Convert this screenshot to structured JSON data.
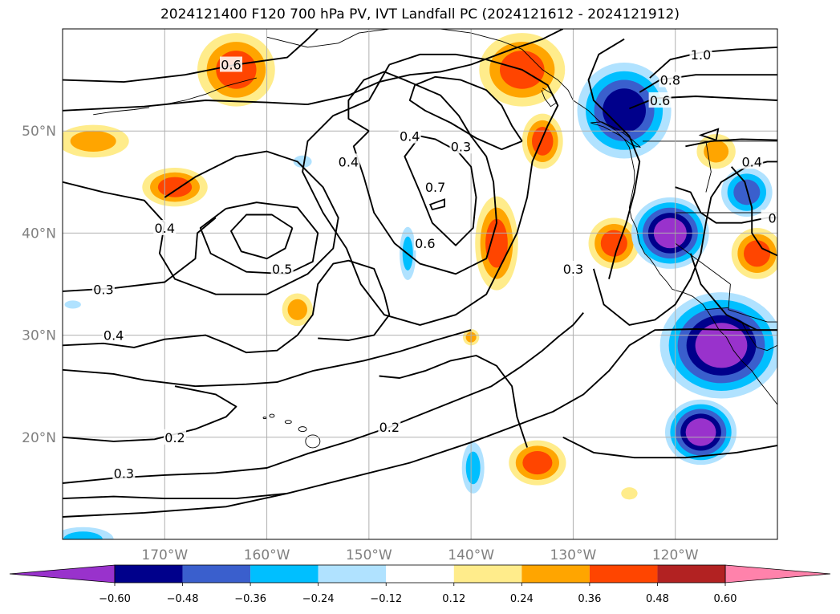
{
  "chart_data": {
    "type": "heatmap",
    "title": "2024121400 F120 700 hPa PV, IVT Landfall PC (2024121612 - 2024121912)",
    "x_ticks": [
      "170°W",
      "160°W",
      "150°W",
      "140°W",
      "130°W",
      "120°W"
    ],
    "x_tick_values": [
      -170,
      -160,
      -150,
      -140,
      -130,
      -120
    ],
    "y_ticks": [
      "20°N",
      "30°N",
      "40°N",
      "50°N"
    ],
    "y_tick_values": [
      20,
      30,
      40,
      50
    ],
    "xlim": [
      -180,
      -110
    ],
    "ylim": [
      10,
      60
    ],
    "grid": true,
    "colorbar": {
      "orientation": "horizontal",
      "extend": "both",
      "levels": [
        -0.72,
        -0.6,
        -0.48,
        -0.36,
        -0.24,
        -0.12,
        0.12,
        0.24,
        0.36,
        0.48,
        0.6,
        0.72
      ],
      "tick_labels": [
        "−0.60",
        "−0.48",
        "−0.36",
        "−0.24",
        "−0.12",
        "0.12",
        "0.24",
        "0.36",
        "0.48",
        "0.60"
      ],
      "tick_values": [
        -0.6,
        -0.48,
        -0.36,
        -0.24,
        -0.12,
        0.12,
        0.24,
        0.36,
        0.48,
        0.6
      ],
      "colors": [
        "#9932cc",
        "#00008b",
        "#3a5fcd",
        "#00bfff",
        "#b0e2ff",
        "#ffffff",
        "#ffec8b",
        "#ffa500",
        "#ff4500",
        "#b22222",
        "#ff82ab"
      ]
    },
    "shaded_regions": [
      {
        "sign": "positive",
        "lon": -163,
        "lat": 56,
        "peak": 0.42
      },
      {
        "sign": "positive",
        "lon": -177,
        "lat": 49,
        "peak": 0.3
      },
      {
        "sign": "positive",
        "lon": -169,
        "lat": 44.5,
        "peak": 0.38
      },
      {
        "sign": "positive",
        "lon": -135,
        "lat": 56,
        "peak": 0.42
      },
      {
        "sign": "positive",
        "lon": -133,
        "lat": 49,
        "peak": 0.38
      },
      {
        "sign": "positive",
        "lon": -137.5,
        "lat": 39,
        "peak": 0.4
      },
      {
        "sign": "positive",
        "lon": -126,
        "lat": 39,
        "peak": 0.38
      },
      {
        "sign": "positive",
        "lon": -116,
        "lat": 48,
        "peak": 0.3
      },
      {
        "sign": "positive",
        "lon": -112,
        "lat": 38,
        "peak": 0.38
      },
      {
        "sign": "positive",
        "lon": -157,
        "lat": 32.5,
        "peak": 0.3
      },
      {
        "sign": "positive",
        "lon": -140,
        "lat": 29.8,
        "peak": 0.25
      },
      {
        "sign": "positive",
        "lon": -133.5,
        "lat": 17.5,
        "peak": 0.38
      },
      {
        "sign": "positive",
        "lon": -124.5,
        "lat": 14.5,
        "peak": 0.2
      },
      {
        "sign": "negative",
        "lon": -125,
        "lat": 52,
        "peak": -0.55
      },
      {
        "sign": "negative",
        "lon": -120.5,
        "lat": 40,
        "peak": -0.65
      },
      {
        "sign": "negative",
        "lon": -115.5,
        "lat": 29,
        "peak": -0.7
      },
      {
        "sign": "negative",
        "lon": -117.5,
        "lat": 20.5,
        "peak": -0.62
      },
      {
        "sign": "negative",
        "lon": -113,
        "lat": 44,
        "peak": -0.4
      },
      {
        "sign": "negative",
        "lon": -139.8,
        "lat": 17,
        "peak": -0.3
      },
      {
        "sign": "negative",
        "lon": -146.2,
        "lat": 38,
        "peak": -0.25
      },
      {
        "sign": "negative",
        "lon": -156.5,
        "lat": 47,
        "peak": -0.2
      },
      {
        "sign": "negative",
        "lon": -178,
        "lat": 10,
        "peak": -0.3
      },
      {
        "sign": "negative",
        "lon": -179,
        "lat": 33,
        "peak": -0.2
      }
    ],
    "pv_contour_labels": [
      {
        "text": "0.6",
        "lon": -163.5,
        "lat": 56.5
      },
      {
        "text": "0.4",
        "lon": -152,
        "lat": 47
      },
      {
        "text": "0.4",
        "lon": -146,
        "lat": 49.5
      },
      {
        "text": "0.3",
        "lon": -141,
        "lat": 48.5
      },
      {
        "text": "0.7",
        "lon": -143.5,
        "lat": 44.5
      },
      {
        "text": "0.6",
        "lon": -144.5,
        "lat": 39
      },
      {
        "text": "0.4",
        "lon": -170,
        "lat": 40.5
      },
      {
        "text": "0.5",
        "lon": -158.5,
        "lat": 36.5
      },
      {
        "text": "0.3",
        "lon": -176,
        "lat": 34.5
      },
      {
        "text": "0.4",
        "lon": -175,
        "lat": 30
      },
      {
        "text": "0.2",
        "lon": -169,
        "lat": 20
      },
      {
        "text": "0.2",
        "lon": -148,
        "lat": 21
      },
      {
        "text": "0.3",
        "lon": -174,
        "lat": 16.5
      },
      {
        "text": "0.3",
        "lon": -130,
        "lat": 36.5
      },
      {
        "text": "1.0",
        "lon": -117.5,
        "lat": 57.5
      },
      {
        "text": "0.8",
        "lon": -120.5,
        "lat": 55
      },
      {
        "text": "0.6",
        "lon": -121.5,
        "lat": 53
      },
      {
        "text": "0.4",
        "lon": -112.5,
        "lat": 47
      },
      {
        "text": "0",
        "lon": -110.5,
        "lat": 41.5
      }
    ]
  }
}
